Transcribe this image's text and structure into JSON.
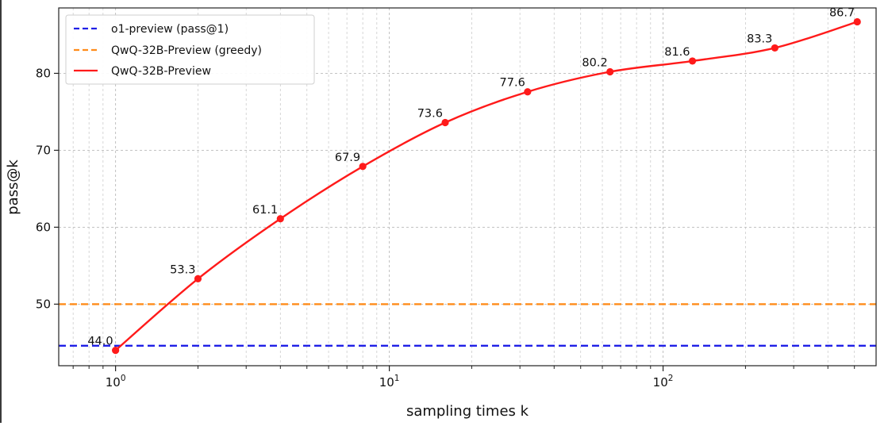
{
  "chart_data": {
    "type": "line",
    "title": "",
    "xlabel": "sampling times k",
    "ylabel": "pass@k",
    "x_scale": "log",
    "xlim": [
      0.62,
      600
    ],
    "ylim": [
      42,
      88.5
    ],
    "grid": true,
    "legend_position": "top-left",
    "x_ticks": [
      {
        "value": 1,
        "base": "10",
        "exp": "0"
      },
      {
        "value": 10,
        "base": "10",
        "exp": "1"
      },
      {
        "value": 100,
        "base": "10",
        "exp": "2"
      }
    ],
    "y_ticks": [
      50,
      60,
      70,
      80
    ],
    "series": [
      {
        "name": "o1-preview (pass@1)",
        "kind": "hline",
        "style": "dashed",
        "color": "#1f1fe6",
        "y": 44.6
      },
      {
        "name": "QwQ-32B-Preview (greedy)",
        "kind": "hline",
        "style": "dashed",
        "color": "#ff8c1a",
        "y": 50.0
      },
      {
        "name": "QwQ-32B-Preview",
        "kind": "line",
        "style": "solid",
        "color": "#ff1a1a",
        "x": [
          1,
          2,
          4,
          8,
          16,
          32,
          64,
          128,
          256,
          512
        ],
        "y": [
          44.0,
          53.3,
          61.1,
          67.9,
          73.6,
          77.6,
          80.2,
          81.6,
          83.3,
          86.7
        ],
        "labels": [
          "44.0",
          "53.3",
          "61.1",
          "67.9",
          "73.6",
          "77.6",
          "80.2",
          "81.6",
          "83.3",
          "86.7"
        ]
      }
    ]
  }
}
